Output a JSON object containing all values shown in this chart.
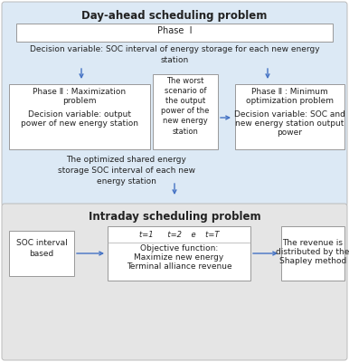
{
  "title_top": "Day-ahead scheduling problem",
  "title_bottom": "Intraday scheduling problem",
  "bg_top": "#dce9f5",
  "bg_bottom": "#e5e5e5",
  "arrow_color": "#4472c4",
  "text_color": "#222222",
  "font_size": 6.5,
  "title_font_size": 8.5,
  "phase1_text": "Phase  Ⅰ",
  "decision1_text": "Decision variable: SOC interval of energy storage for each new energy\nstation",
  "phaseII_left_line1": "Phase Ⅱ : Maximization",
  "phaseII_left_line2": "problem",
  "phaseII_left_line3": "Decision variable: output",
  "phaseII_left_line4": "power of new energy station",
  "worst_line1": "The worst",
  "worst_line2": "scenario of",
  "worst_line3": "the output",
  "worst_line4": "power of the",
  "worst_line5": "new energy",
  "worst_line6": "station",
  "phaseII_right_line1": "Phase Ⅱ : Minimum",
  "phaseII_right_line2": "optimization problem",
  "phaseII_right_line3": "Decision variable: SOC and",
  "phaseII_right_line4": "new energy station output",
  "phaseII_right_line5": "power",
  "optimized_text": "The optimized shared energy\nstorage SOC interval of each new\nenergy station",
  "soc_text": "SOC interval\nbased",
  "obj_top_text": "t=1      t=2    e    t=T",
  "obj_line1": "Objective function:",
  "obj_line2": "Maximize new energy",
  "obj_line3": "Terminal alliance revenue",
  "revenue_line1": "The revenue is",
  "revenue_line2": "distributed by the",
  "revenue_line3": "Shapley method"
}
